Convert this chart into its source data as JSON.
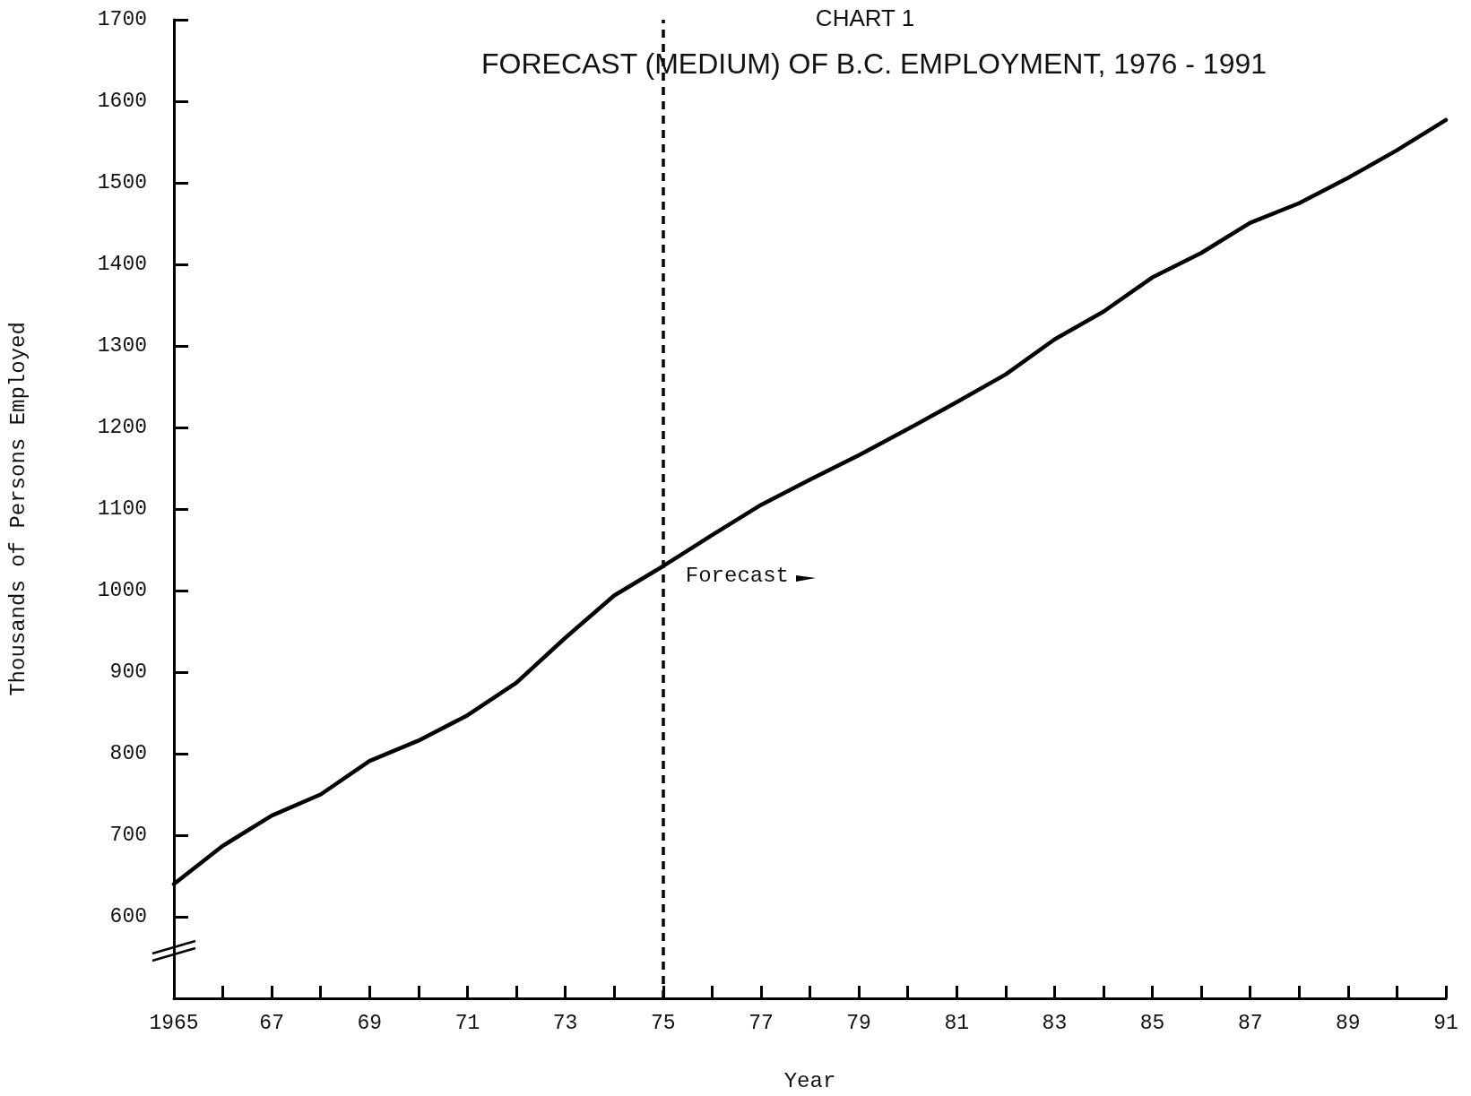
{
  "chart_data": {
    "type": "line",
    "title": "CHART 1",
    "subtitle": "FORECAST (MEDIUM) OF B.C. EMPLOYMENT, 1976 - 1991",
    "xlabel": "Year",
    "ylabel": "Thousands of Persons Employed",
    "x": [
      1965,
      1966,
      1967,
      1968,
      1969,
      1970,
      1971,
      1972,
      1973,
      1974,
      1975,
      1976,
      1977,
      1978,
      1979,
      1980,
      1981,
      1982,
      1983,
      1984,
      1985,
      1986,
      1987,
      1988,
      1989,
      1990,
      1991
    ],
    "series": [
      {
        "color": "#000000",
        "values": [
          640,
          687,
          724,
          750,
          791,
          816,
          847,
          887,
          942,
          994,
          1030,
          1068,
          1105,
          1136,
          1166,
          1198,
          1231,
          1265,
          1308,
          1342,
          1384,
          1414,
          1451,
          1475,
          1506,
          1540,
          1577
        ]
      }
    ],
    "xlim": [
      1965,
      1991
    ],
    "xticks": [
      {
        "value": 1965,
        "label": "1965"
      },
      {
        "value": 1966,
        "label": null
      },
      {
        "value": 1967,
        "label": "67"
      },
      {
        "value": 1968,
        "label": null
      },
      {
        "value": 1969,
        "label": "69"
      },
      {
        "value": 1970,
        "label": null
      },
      {
        "value": 1971,
        "label": "71"
      },
      {
        "value": 1972,
        "label": null
      },
      {
        "value": 1973,
        "label": "73"
      },
      {
        "value": 1974,
        "label": null
      },
      {
        "value": 1975,
        "label": "75"
      },
      {
        "value": 1976,
        "label": null
      },
      {
        "value": 1977,
        "label": "77"
      },
      {
        "value": 1978,
        "label": null
      },
      {
        "value": 1979,
        "label": "79"
      },
      {
        "value": 1980,
        "label": null
      },
      {
        "value": 1981,
        "label": "81"
      },
      {
        "value": 1982,
        "label": null
      },
      {
        "value": 1983,
        "label": "83"
      },
      {
        "value": 1984,
        "label": null
      },
      {
        "value": 1985,
        "label": "85"
      },
      {
        "value": 1986,
        "label": null
      },
      {
        "value": 1987,
        "label": "87"
      },
      {
        "value": 1988,
        "label": null
      },
      {
        "value": 1989,
        "label": "89"
      },
      {
        "value": 1990,
        "label": null
      },
      {
        "value": 1991,
        "label": "91"
      }
    ],
    "ylim": [
      500,
      1700
    ],
    "yticks": [
      600,
      700,
      800,
      900,
      1000,
      1100,
      1200,
      1300,
      1400,
      1500,
      1600,
      1700
    ],
    "ref_lines": [
      {
        "axis": "x",
        "value": 1975,
        "label": "Forecast",
        "color": "#000000",
        "line_style": "dashed"
      }
    ],
    "grid": false,
    "marker": "none",
    "line_style": "solid"
  }
}
